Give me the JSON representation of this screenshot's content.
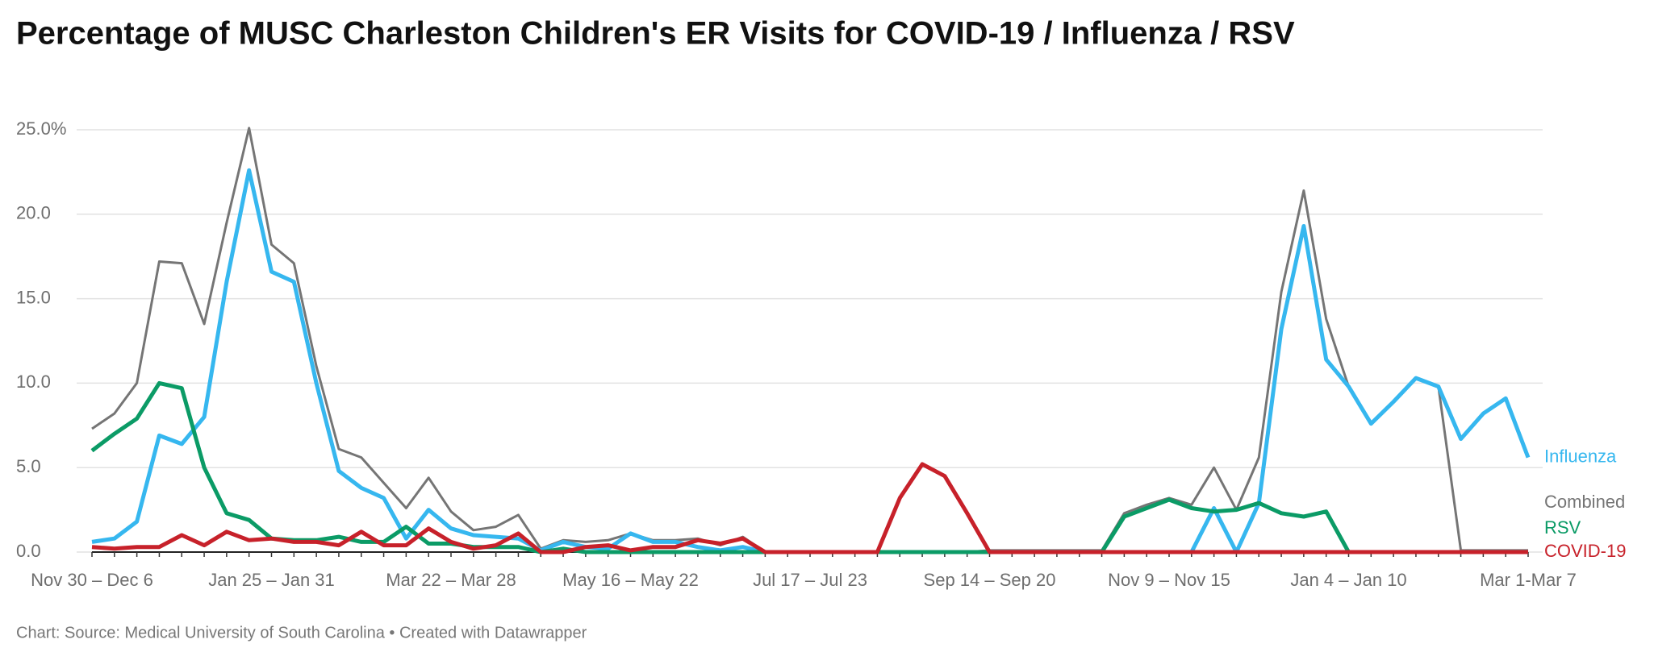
{
  "chart_data": {
    "type": "line",
    "title": "Percentage of MUSC Charleston Children's ER Visits for COVID-19 / Influenza / RSV",
    "footer": "Chart: Source: Medical University of South Carolina • Created with Datawrapper",
    "categories": [
      "Nov 30 – Dec 6",
      null,
      null,
      null,
      null,
      null,
      null,
      null,
      "Jan 25 – Jan 31",
      null,
      null,
      null,
      null,
      null,
      null,
      null,
      "Mar 22 – Mar 28",
      null,
      null,
      null,
      null,
      null,
      null,
      null,
      "May 16 – May 22",
      null,
      null,
      null,
      null,
      null,
      null,
      null,
      "Jul 17 – Jul 23",
      null,
      null,
      null,
      null,
      null,
      null,
      null,
      "Sep 14 – Sep 20",
      null,
      null,
      null,
      null,
      null,
      null,
      null,
      "Nov 9 – Nov 15",
      null,
      null,
      null,
      null,
      null,
      null,
      null,
      "Jan 4 – Jan 10",
      null,
      null,
      null,
      null,
      null,
      null,
      null,
      "Mar 1-Mar 7"
    ],
    "ylim": [
      0,
      25
    ],
    "yticks": [
      {
        "value": 0,
        "label": "0.0"
      },
      {
        "value": 5,
        "label": "5.0"
      },
      {
        "value": 10,
        "label": "10.0"
      },
      {
        "value": 15,
        "label": "15.0"
      },
      {
        "value": 20,
        "label": "20.0"
      },
      {
        "value": 25,
        "label": "25.0%"
      }
    ],
    "grid": true,
    "series": [
      {
        "name": "Combined",
        "color": "#757575",
        "values": [
          7.3,
          8.2,
          10.0,
          17.2,
          17.1,
          13.5,
          19.5,
          25.1,
          18.2,
          17.1,
          11.0,
          6.1,
          5.6,
          4.1,
          2.6,
          4.4,
          2.4,
          1.3,
          1.5,
          2.2,
          0.2,
          0.7,
          0.6,
          0.7,
          1.1,
          0.7,
          0.7,
          0.8,
          0.4,
          0.9,
          0,
          0,
          0,
          0,
          0,
          0,
          0,
          0,
          0,
          0,
          0.1,
          0.1,
          0.1,
          0.1,
          0.1,
          0.1,
          2.3,
          2.8,
          3.2,
          2.8,
          5.0,
          2.5,
          5.6,
          15.4,
          21.4,
          13.8,
          9.8,
          7.6,
          8.9,
          10.3,
          9.8,
          0.1,
          0.1,
          0.1,
          0.1
        ]
      },
      {
        "name": "Influenza",
        "color": "#36b7ef",
        "values": [
          0.6,
          0.8,
          1.8,
          6.9,
          6.4,
          8.0,
          16.0,
          22.6,
          16.6,
          16.0,
          10.0,
          4.8,
          3.8,
          3.2,
          0.8,
          2.5,
          1.4,
          1.0,
          0.9,
          0.8,
          0.1,
          0.6,
          0.3,
          0.2,
          1.1,
          0.6,
          0.6,
          0.3,
          0.1,
          0.3,
          0,
          0,
          0,
          0,
          0,
          0,
          0,
          0,
          0,
          0,
          0,
          0,
          0,
          0,
          0,
          0,
          0,
          0,
          0,
          0,
          2.6,
          0,
          2.9,
          13.2,
          19.3,
          11.4,
          9.8,
          7.6,
          8.9,
          10.3,
          9.8,
          6.7,
          8.2,
          9.1,
          5.6
        ]
      },
      {
        "name": "RSV",
        "color": "#0b9b66",
        "values": [
          6.0,
          7.0,
          7.9,
          10.0,
          9.7,
          5.0,
          2.3,
          1.9,
          0.8,
          0.7,
          0.7,
          0.9,
          0.6,
          0.6,
          1.5,
          0.5,
          0.5,
          0.3,
          0.3,
          0.3,
          0,
          0.2,
          0,
          0,
          0,
          0,
          0,
          0,
          0,
          0,
          0,
          0,
          0,
          0,
          0,
          0,
          0,
          0,
          0,
          0,
          0,
          0,
          0,
          0,
          0,
          0,
          2.1,
          2.6,
          3.1,
          2.6,
          2.4,
          2.5,
          2.9,
          2.3,
          2.1,
          2.4,
          0,
          0,
          0,
          0,
          0,
          0,
          0,
          0,
          0
        ]
      },
      {
        "name": "COVID-19",
        "color": "#c7212a",
        "values": [
          0.3,
          0.2,
          0.3,
          0.3,
          1.0,
          0.4,
          1.2,
          0.7,
          0.8,
          0.6,
          0.6,
          0.4,
          1.2,
          0.4,
          0.4,
          1.4,
          0.6,
          0.2,
          0.4,
          1.1,
          0,
          0,
          0.3,
          0.4,
          0.1,
          0.3,
          0.3,
          0.7,
          0.5,
          0.8,
          0,
          0,
          0,
          0,
          0,
          0,
          3.2,
          5.2,
          4.5,
          2.3,
          0,
          0,
          0,
          0,
          0,
          0,
          0,
          0,
          0,
          0,
          0,
          0,
          0,
          0,
          0,
          0,
          0,
          0,
          0,
          0,
          0,
          0,
          0,
          0,
          0
        ]
      }
    ]
  }
}
